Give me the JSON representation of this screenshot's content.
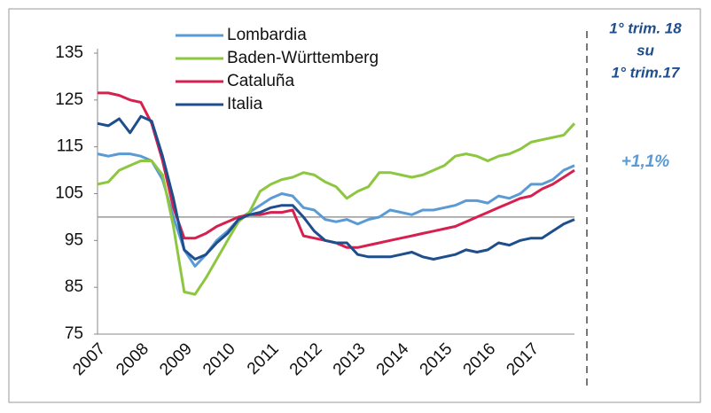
{
  "chart_data": {
    "type": "line",
    "categories": [
      "2007",
      null,
      null,
      null,
      "2008",
      null,
      null,
      null,
      "2009",
      null,
      null,
      null,
      "2010",
      null,
      null,
      null,
      "2011",
      null,
      null,
      null,
      "2012",
      null,
      null,
      null,
      "2013",
      null,
      null,
      null,
      "2014",
      null,
      null,
      null,
      "2015",
      null,
      null,
      null,
      "2016",
      null,
      null,
      null,
      "2017",
      null,
      null,
      null,
      null
    ],
    "series": [
      {
        "name": "Lombardia",
        "color": "#5b9bd5",
        "values": [
          113.5,
          113,
          113.5,
          113.5,
          113,
          112,
          108,
          100,
          93,
          89.5,
          92,
          95,
          97,
          99.5,
          101,
          102.5,
          104,
          105,
          104.5,
          102,
          101.5,
          99.5,
          99,
          99.5,
          98.5,
          99.5,
          100,
          101.5,
          101,
          100.5,
          101.5,
          101.5,
          102,
          102.5,
          103.5,
          103.5,
          103,
          104.5,
          104,
          105,
          107,
          107,
          108,
          110,
          111
        ]
      },
      {
        "name": "Baden-Württemberg",
        "color": "#8dc63f",
        "values": [
          107,
          107.5,
          110,
          111,
          112,
          112,
          109,
          98,
          84,
          83.5,
          87,
          91,
          95,
          99,
          101,
          105.5,
          107,
          108,
          108.5,
          109.5,
          109,
          107.5,
          106.5,
          104,
          105.5,
          106.5,
          109.5,
          109.5,
          109,
          108.5,
          109,
          110,
          111,
          113,
          113.5,
          113,
          112,
          113,
          113.5,
          114.5,
          116,
          116.5,
          117,
          117.5,
          120
        ]
      },
      {
        "name": "Cataluña",
        "color": "#d6204e",
        "values": [
          126.5,
          126.5,
          126,
          125,
          124.5,
          120,
          112,
          102,
          95.5,
          95.5,
          96.5,
          98,
          99,
          100,
          100.5,
          100.5,
          101,
          101,
          101.5,
          96,
          95.5,
          95,
          94.5,
          93.5,
          93.5,
          94,
          94.5,
          95,
          95.5,
          96,
          96.5,
          97,
          97.5,
          98,
          99,
          100,
          101,
          102,
          103,
          104,
          104.5,
          106,
          107,
          108.5,
          110
        ]
      },
      {
        "name": "Italia",
        "color": "#1f4e8c",
        "values": [
          120,
          119.5,
          121,
          118,
          121.5,
          120.5,
          113,
          104,
          93,
          91,
          92,
          94.5,
          96.5,
          99.5,
          100.5,
          101,
          102,
          102.5,
          102.5,
          100,
          97,
          95,
          94.5,
          94.5,
          92,
          91.5,
          91.5,
          91.5,
          92,
          92.5,
          91.5,
          91,
          91.5,
          92,
          93,
          92.5,
          93,
          94.5,
          94,
          95,
          95.5,
          95.5,
          97,
          98.5,
          99.5
        ]
      }
    ],
    "ylim": [
      75,
      135
    ],
    "yticks": [
      75,
      85,
      95,
      105,
      115,
      125,
      135
    ],
    "reference_line": 100,
    "annotations": [
      "1° trim. 18",
      "su",
      "1° trim.17",
      "+1,1%"
    ]
  }
}
